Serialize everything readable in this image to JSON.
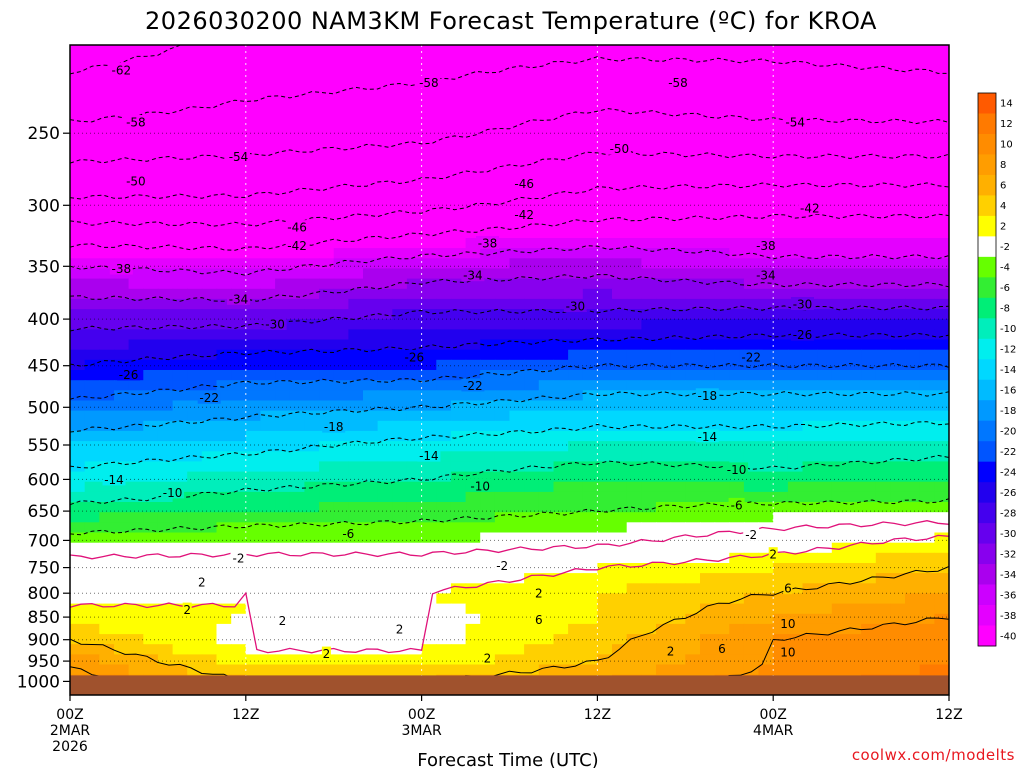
{
  "chart_data": {
    "type": "heatmap",
    "title": "2026030200 NAM3KM Forecast Temperature (ºC) for KROA",
    "xlabel": "Forecast Time (UTC)",
    "ylabel": "",
    "credit": "coolwx.com/modelts",
    "x_axis": {
      "range_hours": [
        0,
        60
      ],
      "ticks": [
        {
          "hour": 0,
          "label": "00Z",
          "sub1": "2MAR",
          "sub2": "2026"
        },
        {
          "hour": 12,
          "label": "12Z",
          "sub1": "",
          "sub2": ""
        },
        {
          "hour": 24,
          "label": "00Z",
          "sub1": "3MAR",
          "sub2": ""
        },
        {
          "hour": 36,
          "label": "12Z",
          "sub1": "",
          "sub2": ""
        },
        {
          "hour": 48,
          "label": "00Z",
          "sub1": "4MAR",
          "sub2": ""
        },
        {
          "hour": 60,
          "label": "12Z",
          "sub1": "",
          "sub2": ""
        }
      ]
    },
    "y_axis": {
      "scale": "log-pressure",
      "range_hpa": [
        1035,
        200
      ],
      "ticks": [
        250,
        300,
        350,
        400,
        450,
        500,
        550,
        600,
        650,
        700,
        750,
        800,
        850,
        900,
        950,
        1000
      ]
    },
    "ground_hpa": 985,
    "ground_color": "#a0522d",
    "colorbar": {
      "levels": [
        14,
        12,
        10,
        8,
        6,
        4,
        2,
        -2,
        -4,
        -6,
        -8,
        -10,
        -12,
        -14,
        -16,
        -18,
        -20,
        -22,
        -24,
        -26,
        -28,
        -30,
        -32,
        -34,
        -36,
        -38,
        -40
      ],
      "colors": [
        "#ff5a00",
        "#ff7a00",
        "#ff8c00",
        "#ff9d00",
        "#ffb000",
        "#ffd000",
        "#ffff00",
        "#ffffff",
        "#66ff00",
        "#33ee33",
        "#00ee77",
        "#00eebb",
        "#00eeee",
        "#00d8ff",
        "#00bbff",
        "#0099ff",
        "#0077ff",
        "#0055ff",
        "#0000ff",
        "#2200ee",
        "#4400ee",
        "#6600ee",
        "#8800ee",
        "#aa00ee",
        "#cc00ff",
        "#e400ff",
        "#ff00ff"
      ]
    },
    "temperature_profile": {
      "pressures_hpa": [
        200,
        250,
        300,
        350,
        400,
        450,
        500,
        550,
        600,
        650,
        700,
        750,
        800,
        850,
        900,
        950,
        1000
      ],
      "times_hours": [
        0,
        12,
        24,
        36,
        48,
        60
      ],
      "values_c": [
        [
          -64,
          -61,
          -60,
          -59,
          -59,
          -60
        ],
        [
          -57,
          -56,
          -55,
          -52,
          -53,
          -53
        ],
        [
          -49,
          -49,
          -47,
          -44,
          -43,
          -43
        ],
        [
          -38,
          -39,
          -36,
          -35,
          -37,
          -37
        ],
        [
          -31,
          -31,
          -29,
          -29,
          -28,
          -28
        ],
        [
          -26,
          -24,
          -24,
          -22,
          -22,
          -22
        ],
        [
          -21,
          -19,
          -18,
          -16,
          -16,
          -16
        ],
        [
          -16,
          -15,
          -13,
          -12,
          -12,
          -11
        ],
        [
          -13,
          -11,
          -10,
          -8,
          -9,
          -8
        ],
        [
          -9,
          -8,
          -7,
          -6,
          -5,
          -5
        ],
        [
          -5,
          -4,
          -4,
          -3,
          0,
          3
        ],
        [
          0,
          0,
          0,
          2,
          4,
          6
        ],
        [
          1,
          2,
          2,
          4,
          6,
          8
        ],
        [
          3,
          2,
          1,
          4,
          8,
          10
        ],
        [
          6,
          1,
          1,
          5,
          10,
          12
        ],
        [
          9,
          3,
          3,
          6,
          10,
          12
        ],
        [
          12,
          6,
          6,
          8,
          11,
          13
        ]
      ]
    },
    "contour_labels": [
      {
        "text": "-62",
        "hour": 3.5,
        "p": 213
      },
      {
        "text": "-58",
        "hour": 4.5,
        "p": 243
      },
      {
        "text": "-58",
        "hour": 24.5,
        "p": 220
      },
      {
        "text": "-58",
        "hour": 41.5,
        "p": 220
      },
      {
        "text": "-54",
        "hour": 11.5,
        "p": 265
      },
      {
        "text": "-54",
        "hour": 49.5,
        "p": 243
      },
      {
        "text": "-50",
        "hour": 4.5,
        "p": 282
      },
      {
        "text": "-50",
        "hour": 37.5,
        "p": 260
      },
      {
        "text": "-46",
        "hour": 15.5,
        "p": 317
      },
      {
        "text": "-46",
        "hour": 31,
        "p": 284
      },
      {
        "text": "-42",
        "hour": 15.5,
        "p": 332
      },
      {
        "text": "-42",
        "hour": 31,
        "p": 307
      },
      {
        "text": "-42",
        "hour": 50.5,
        "p": 302
      },
      {
        "text": "-38",
        "hour": 3.5,
        "p": 352
      },
      {
        "text": "-38",
        "hour": 28.5,
        "p": 330
      },
      {
        "text": "-38",
        "hour": 47.5,
        "p": 332
      },
      {
        "text": "-34",
        "hour": 11.5,
        "p": 380
      },
      {
        "text": "-34",
        "hour": 27.5,
        "p": 358
      },
      {
        "text": "-34",
        "hour": 47.5,
        "p": 358
      },
      {
        "text": "-30",
        "hour": 14,
        "p": 405
      },
      {
        "text": "-30",
        "hour": 34.5,
        "p": 387
      },
      {
        "text": "-30",
        "hour": 50,
        "p": 385
      },
      {
        "text": "-26",
        "hour": 4,
        "p": 460
      },
      {
        "text": "-26",
        "hour": 23.5,
        "p": 440
      },
      {
        "text": "-26",
        "hour": 50,
        "p": 416
      },
      {
        "text": "-22",
        "hour": 9.5,
        "p": 488
      },
      {
        "text": "-22",
        "hour": 27.5,
        "p": 473
      },
      {
        "text": "-22",
        "hour": 46.5,
        "p": 440
      },
      {
        "text": "-18",
        "hour": 18,
        "p": 525
      },
      {
        "text": "-18",
        "hour": 43.5,
        "p": 485
      },
      {
        "text": "-14",
        "hour": 3,
        "p": 600
      },
      {
        "text": "-14",
        "hour": 24.5,
        "p": 565
      },
      {
        "text": "-14",
        "hour": 43.5,
        "p": 538
      },
      {
        "text": "-10",
        "hour": 7,
        "p": 620
      },
      {
        "text": "-10",
        "hour": 28,
        "p": 610
      },
      {
        "text": "-10",
        "hour": 45.5,
        "p": 585
      },
      {
        "text": "-6",
        "hour": 19,
        "p": 688
      },
      {
        "text": "-6",
        "hour": 45.5,
        "p": 640
      },
      {
        "text": "-2",
        "hour": 11.5,
        "p": 732
      },
      {
        "text": "-2",
        "hour": 29.5,
        "p": 746
      },
      {
        "text": "-2",
        "hour": 46.5,
        "p": 690
      },
      {
        "text": "2",
        "hour": 9,
        "p": 778
      },
      {
        "text": "2",
        "hour": 32,
        "p": 800
      },
      {
        "text": "2",
        "hour": 48,
        "p": 725
      },
      {
        "text": "2",
        "hour": 8,
        "p": 834
      },
      {
        "text": "2",
        "hour": 14.5,
        "p": 857
      },
      {
        "text": "2",
        "hour": 22.5,
        "p": 876
      },
      {
        "text": "2",
        "hour": 17.5,
        "p": 932
      },
      {
        "text": "2",
        "hour": 28.5,
        "p": 943
      },
      {
        "text": "2",
        "hour": 41,
        "p": 926
      },
      {
        "text": "6",
        "hour": 32,
        "p": 855
      },
      {
        "text": "6",
        "hour": 44.5,
        "p": 920
      },
      {
        "text": "6",
        "hour": 49,
        "p": 790
      },
      {
        "text": "10",
        "hour": 49,
        "p": 864
      },
      {
        "text": "10",
        "hour": 49,
        "p": 928
      }
    ]
  }
}
